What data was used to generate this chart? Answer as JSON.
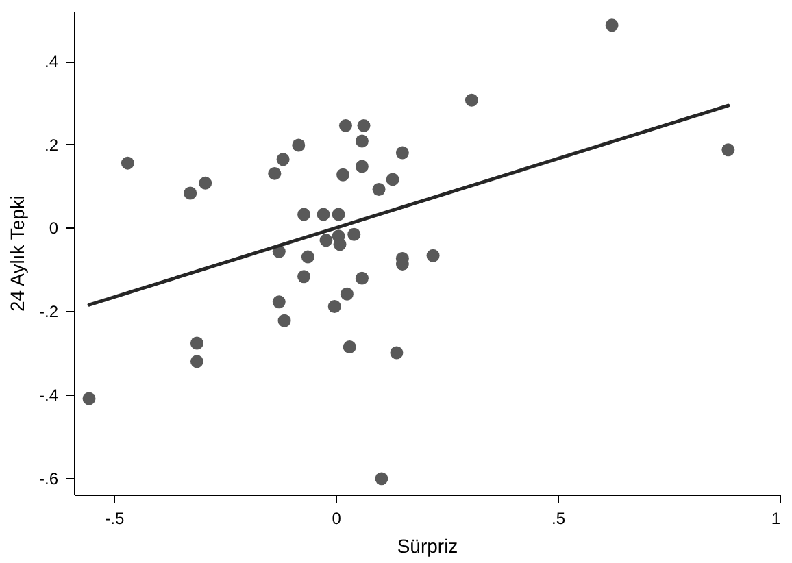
{
  "chart_data": {
    "type": "scatter",
    "xlabel": "Sürpriz",
    "ylabel": "24 Aylık Tepki",
    "xlim": [
      -0.59,
      1.0
    ],
    "ylim": [
      -0.64,
      0.52
    ],
    "xticks": [
      {
        "value": -0.5,
        "label": "-.5"
      },
      0,
      {
        "value": 0.5,
        "label": ".5"
      },
      1
    ],
    "yticks": [
      {
        "value": -0.6,
        "label": "-.6"
      },
      {
        "value": -0.4,
        "label": "-.4"
      },
      {
        "value": -0.2,
        "label": "-.2"
      },
      0,
      {
        "value": 0.2,
        "label": ".2"
      },
      {
        "value": 0.4,
        "label": ".4"
      }
    ],
    "grid": false,
    "series": [
      {
        "color": "#595959",
        "marker": "circle",
        "x": [
          -0.556,
          -0.469,
          -0.328,
          -0.294,
          -0.313,
          -0.313,
          -0.138,
          -0.119,
          -0.084,
          -0.072,
          -0.063,
          -0.072,
          -0.128,
          -0.128,
          -0.116,
          -0.028,
          0.006,
          -0.003,
          0.016,
          0.022,
          0.063,
          0.059,
          0.059,
          0.025,
          0.031,
          0.006,
          0.041,
          0.059,
          0.097,
          0.128,
          0.15,
          0.15,
          0.15,
          0.103,
          0.137,
          0.219,
          0.306,
          0.622,
          0.884,
          -0.022,
          0.009
        ],
        "values": [
          -0.41,
          0.155,
          0.083,
          0.107,
          -0.277,
          -0.321,
          0.13,
          0.164,
          0.198,
          0.032,
          -0.07,
          -0.117,
          -0.057,
          -0.178,
          -0.223,
          0.032,
          0.032,
          -0.189,
          0.127,
          0.245,
          0.245,
          0.208,
          0.147,
          -0.159,
          -0.286,
          -0.02,
          -0.016,
          -0.121,
          0.092,
          0.116,
          0.18,
          -0.087,
          -0.074,
          -0.602,
          -0.3,
          -0.067,
          0.306,
          0.486,
          0.187,
          -0.03,
          -0.04
        ]
      },
      {
        "type": "line",
        "color": "#262626",
        "marker": "none",
        "line_style": "solid",
        "x": [
          -0.556,
          0.884
        ],
        "values": [
          -0.185,
          0.293
        ]
      }
    ]
  }
}
